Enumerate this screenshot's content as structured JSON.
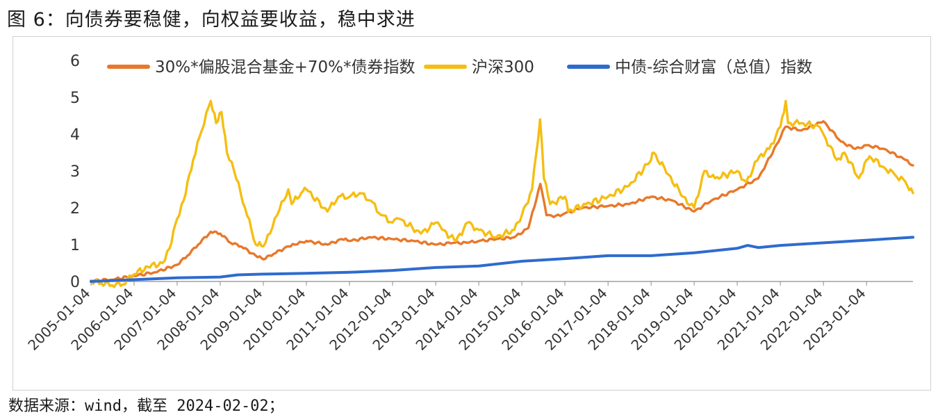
{
  "title": "图 6：向债券要稳健，向权益要收益，稳中求进",
  "source": "数据来源：wind，截至 2024-02-02；",
  "chart_data": {
    "type": "line",
    "ylim": [
      0,
      6
    ],
    "yticks": [
      "0",
      "1",
      "2",
      "3",
      "4",
      "5",
      "6"
    ],
    "xlim": [
      "2005-01-04",
      "2024-02-02"
    ],
    "xticks": [
      "2005-01-04",
      "2006-01-04",
      "2007-01-04",
      "2008-01-04",
      "2009-01-04",
      "2010-01-04",
      "2011-01-04",
      "2012-01-04",
      "2013-01-04",
      "2014-01-04",
      "2015-01-04",
      "2016-01-04",
      "2017-01-04",
      "2018-01-04",
      "2019-01-04",
      "2020-01-04",
      "2021-01-04",
      "2022-01-04",
      "2023-01-04"
    ],
    "legend_position": "top",
    "series": [
      {
        "name": "30%*偏股混合基金+70%*债券指数",
        "color": "#E8782A",
        "x": [
          "2005-01-04",
          "2005-07-01",
          "2006-01-04",
          "2006-07-01",
          "2007-01-04",
          "2007-04-01",
          "2007-07-01",
          "2007-10-16",
          "2008-01-04",
          "2008-04-01",
          "2008-07-01",
          "2008-11-01",
          "2009-01-04",
          "2009-04-01",
          "2009-08-01",
          "2009-10-01",
          "2010-01-04",
          "2010-07-01",
          "2010-11-01",
          "2011-01-04",
          "2011-07-01",
          "2012-01-04",
          "2012-07-01",
          "2013-01-04",
          "2013-06-01",
          "2013-10-01",
          "2014-01-04",
          "2014-06-01",
          "2014-11-01",
          "2015-03-01",
          "2015-06-10",
          "2015-08-01",
          "2015-10-01",
          "2016-01-04",
          "2016-06-01",
          "2017-01-04",
          "2017-07-01",
          "2018-01-04",
          "2018-07-01",
          "2019-01-04",
          "2019-06-01",
          "2020-01-04",
          "2020-07-01",
          "2021-01-04",
          "2021-02-15",
          "2021-07-01",
          "2022-01-04",
          "2022-06-01",
          "2022-10-01",
          "2023-01-04",
          "2023-06-01",
          "2023-12-01",
          "2024-02-02"
        ],
        "y": [
          0.02,
          0.05,
          0.15,
          0.25,
          0.45,
          0.7,
          1.0,
          1.35,
          1.3,
          1.05,
          0.95,
          0.7,
          0.6,
          0.75,
          0.95,
          1.0,
          1.1,
          1.0,
          1.15,
          1.1,
          1.2,
          1.15,
          1.1,
          1.0,
          1.05,
          1.05,
          1.1,
          1.15,
          1.2,
          1.45,
          2.65,
          1.8,
          1.75,
          1.85,
          2.0,
          2.05,
          2.1,
          2.3,
          2.2,
          1.9,
          2.2,
          2.5,
          2.8,
          3.9,
          4.2,
          4.1,
          4.35,
          3.8,
          3.6,
          3.7,
          3.6,
          3.3,
          3.15
        ]
      },
      {
        "name": "沪深300",
        "color": "#F5BE12",
        "x": [
          "2005-01-04",
          "2005-04-01",
          "2005-07-01",
          "2005-10-01",
          "2006-01-04",
          "2006-05-01",
          "2006-09-01",
          "2006-11-01",
          "2007-01-04",
          "2007-03-01",
          "2007-05-20",
          "2007-08-01",
          "2007-10-16",
          "2007-12-01",
          "2008-01-15",
          "2008-03-01",
          "2008-05-01",
          "2008-08-01",
          "2008-11-01",
          "2009-01-04",
          "2009-03-01",
          "2009-05-01",
          "2009-08-04",
          "2009-09-01",
          "2009-11-20",
          "2010-01-04",
          "2010-07-01",
          "2010-10-01",
          "2011-01-04",
          "2011-04-01",
          "2011-07-01",
          "2011-10-01",
          "2012-01-04",
          "2012-03-01",
          "2012-09-01",
          "2013-01-04",
          "2013-03-01",
          "2013-06-25",
          "2013-10-01",
          "2014-01-04",
          "2014-06-01",
          "2014-11-01",
          "2015-01-04",
          "2015-04-01",
          "2015-06-08",
          "2015-07-10",
          "2015-09-01",
          "2016-01-04",
          "2016-02-01",
          "2016-07-01",
          "2017-01-04",
          "2017-07-01",
          "2018-01-04",
          "2018-01-24",
          "2018-06-01",
          "2018-10-01",
          "2019-01-04",
          "2019-04-01",
          "2019-07-01",
          "2020-01-04",
          "2020-03-20",
          "2020-07-10",
          "2020-10-01",
          "2021-01-04",
          "2021-02-18",
          "2021-03-10",
          "2021-07-01",
          "2021-12-01",
          "2022-01-04",
          "2022-04-26",
          "2022-07-01",
          "2022-10-31",
          "2023-01-04",
          "2023-01-30",
          "2023-06-01",
          "2023-09-01",
          "2023-12-01",
          "2024-02-02"
        ],
        "y": [
          0.0,
          -0.05,
          -0.1,
          -0.08,
          0.2,
          0.4,
          0.5,
          0.9,
          1.7,
          2.2,
          3.3,
          4.1,
          4.9,
          4.3,
          4.6,
          3.5,
          3.0,
          2.0,
          1.0,
          0.95,
          1.3,
          1.8,
          2.5,
          2.1,
          2.4,
          2.5,
          1.9,
          2.3,
          2.3,
          2.4,
          2.2,
          1.8,
          1.6,
          1.7,
          1.3,
          1.6,
          1.4,
          1.1,
          1.6,
          1.4,
          1.2,
          1.4,
          1.8,
          2.5,
          4.4,
          2.8,
          2.1,
          2.3,
          1.9,
          2.1,
          2.3,
          2.6,
          3.3,
          3.5,
          2.9,
          2.3,
          2.0,
          3.0,
          2.8,
          3.0,
          2.7,
          3.4,
          3.6,
          4.2,
          4.9,
          4.3,
          4.3,
          4.2,
          4.0,
          3.3,
          3.5,
          2.8,
          3.3,
          3.4,
          3.1,
          2.9,
          2.7,
          2.4
        ]
      },
      {
        "name": "中债-综合财富（总值）指数",
        "color": "#2E6BCE",
        "x": [
          "2005-01-04",
          "2006-01-04",
          "2007-01-04",
          "2008-01-04",
          "2008-06-01",
          "2009-01-04",
          "2010-01-04",
          "2011-01-04",
          "2012-01-04",
          "2013-01-04",
          "2014-01-04",
          "2015-01-04",
          "2016-01-04",
          "2017-01-04",
          "2018-01-04",
          "2019-01-04",
          "2020-01-04",
          "2020-04-01",
          "2020-07-01",
          "2021-01-04",
          "2022-01-04",
          "2023-01-04",
          "2024-02-02"
        ],
        "y": [
          0.0,
          0.05,
          0.1,
          0.12,
          0.18,
          0.2,
          0.22,
          0.25,
          0.3,
          0.38,
          0.42,
          0.55,
          0.62,
          0.7,
          0.7,
          0.78,
          0.9,
          0.98,
          0.92,
          0.98,
          1.05,
          1.12,
          1.2
        ]
      }
    ]
  }
}
